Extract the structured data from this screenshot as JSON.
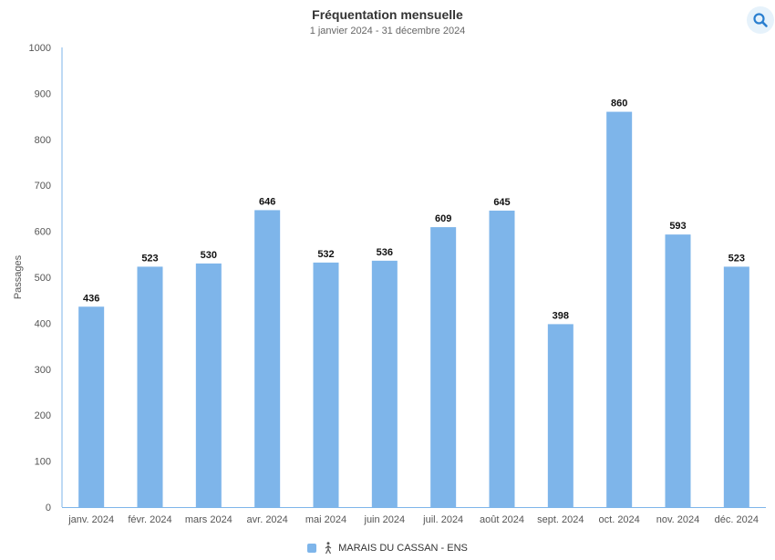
{
  "header": {
    "title": "Fréquentation mensuelle",
    "subtitle": "1 janvier 2024 - 31 décembre 2024",
    "zoom_icon": "search-icon"
  },
  "colors": {
    "bar": "#7eb5ea",
    "axis": "#7eb5ea",
    "tick_label": "#555555",
    "data_label": "#111111",
    "zoom_bg": "#e6f2fb",
    "zoom_icon": "#2a7fd0"
  },
  "legend": {
    "icon": "pedestrian-icon",
    "label": "MARAIS DU CASSAN - ENS",
    "placement": "bottom-center"
  },
  "chart_data": {
    "type": "bar",
    "title": "Fréquentation mensuelle",
    "subtitle": "1 janvier 2024 - 31 décembre 2024",
    "ylabel": "Passages",
    "xlabel": "",
    "ylim": [
      0,
      1000
    ],
    "yticks": [
      0,
      100,
      200,
      300,
      400,
      500,
      600,
      700,
      800,
      900,
      1000
    ],
    "grid": false,
    "categories": [
      "janv. 2024",
      "févr. 2024",
      "mars 2024",
      "avr. 2024",
      "mai 2024",
      "juin 2024",
      "juil. 2024",
      "août 2024",
      "sept. 2024",
      "oct. 2024",
      "nov. 2024",
      "déc. 2024"
    ],
    "series": [
      {
        "name": "MARAIS DU CASSAN - ENS",
        "values": [
          436,
          523,
          530,
          646,
          532,
          536,
          609,
          645,
          398,
          860,
          593,
          523
        ]
      }
    ]
  }
}
